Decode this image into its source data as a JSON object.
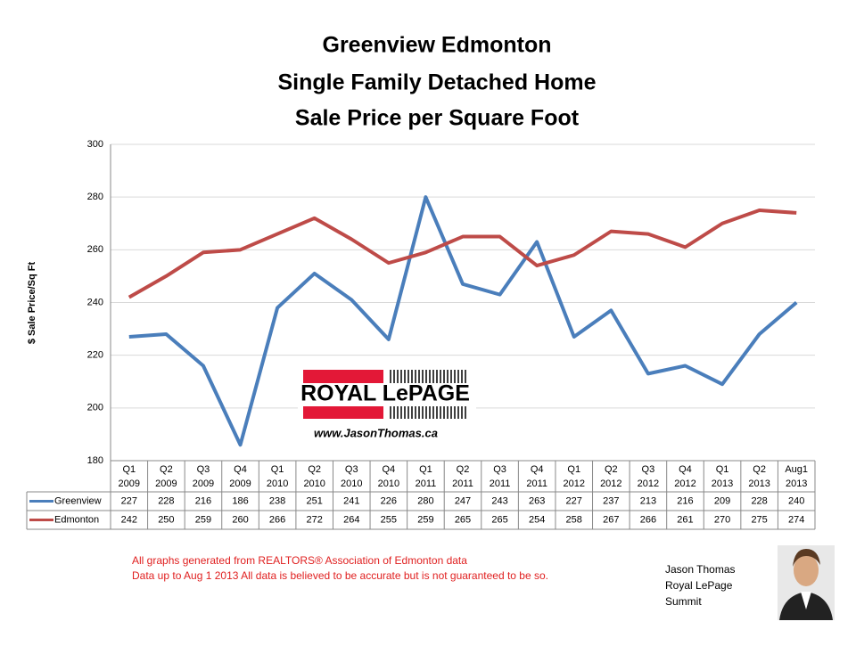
{
  "chart_data": {
    "type": "line",
    "title": [
      "Greenview Edmonton",
      "Single Family Detached Home",
      "Sale Price per Square Foot"
    ],
    "y_label": "$ Sale Price/Sq Ft",
    "categories": [
      [
        "Q1",
        "2009"
      ],
      [
        "Q2",
        "2009"
      ],
      [
        "Q3",
        "2009"
      ],
      [
        "Q4",
        "2009"
      ],
      [
        "Q1",
        "2010"
      ],
      [
        "Q2",
        "2010"
      ],
      [
        "Q3",
        "2010"
      ],
      [
        "Q4",
        "2010"
      ],
      [
        "Q1",
        "2011"
      ],
      [
        "Q2",
        "2011"
      ],
      [
        "Q3",
        "2011"
      ],
      [
        "Q4",
        "2011"
      ],
      [
        "Q1",
        "2012"
      ],
      [
        "Q2",
        "2012"
      ],
      [
        "Q3",
        "2012"
      ],
      [
        "Q4",
        "2012"
      ],
      [
        "Q1",
        "2013"
      ],
      [
        "Q2",
        "2013"
      ],
      [
        "Aug1",
        "2013"
      ]
    ],
    "series": [
      {
        "name": "Greenview",
        "color": "#4a7ebb",
        "values": [
          227,
          228,
          216,
          186,
          238,
          251,
          241,
          226,
          280,
          247,
          243,
          263,
          227,
          237,
          213,
          216,
          209,
          228,
          240
        ]
      },
      {
        "name": "Edmonton",
        "color": "#be4b48",
        "values": [
          242,
          250,
          259,
          260,
          266,
          272,
          264,
          255,
          259,
          265,
          265,
          254,
          258,
          267,
          266,
          261,
          270,
          275,
          274
        ]
      }
    ],
    "ylim": [
      180,
      300
    ],
    "yticks": [
      180,
      200,
      220,
      240,
      260,
      280,
      300
    ],
    "grid": true,
    "logo": {
      "brand": "ROYAL LePAGE",
      "url": "www.JasonThomas.ca"
    },
    "notes": [
      "All graphs generated from REALTORS® Association of Edmonton data",
      "Data up to  Aug 1 2013  All data is believed to be accurate but is not guaranteed to be so."
    ],
    "agent": [
      "Jason Thomas",
      "Royal LePage",
      "Summit"
    ]
  }
}
